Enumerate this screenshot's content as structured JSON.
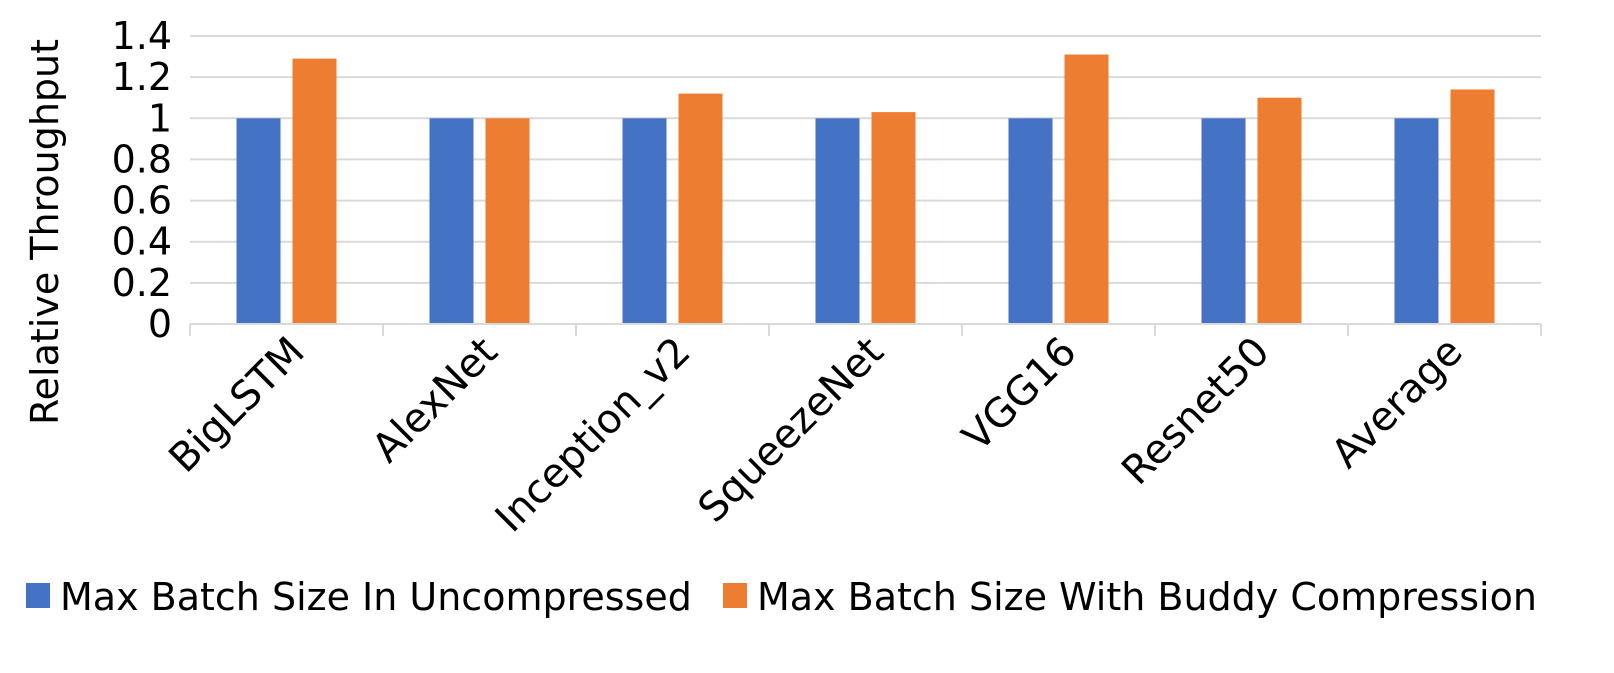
{
  "chart_data": {
    "type": "bar",
    "title": "",
    "xlabel": "",
    "ylabel": "Relative Throughput",
    "ylim": [
      0,
      1.4
    ],
    "yticks": [
      "0",
      "0.2",
      "0.4",
      "0.6",
      "0.8",
      "1",
      "1.2",
      "1.4"
    ],
    "ytick_values": [
      0,
      0.2,
      0.4,
      0.6,
      0.8,
      1,
      1.2,
      1.4
    ],
    "grid": true,
    "legend_position": "bottom",
    "categories": [
      "BigLSTM",
      "AlexNet",
      "Inception_v2",
      "SqueezeNet",
      "VGG16",
      "Resnet50",
      "Average"
    ],
    "series": [
      {
        "name": "Max Batch Size In Uncompressed",
        "color": "#4472C4",
        "values": [
          1,
          1,
          1,
          1,
          1,
          1,
          1
        ]
      },
      {
        "name": "Max Batch Size With Buddy Compression",
        "color": "#ED7D31",
        "values": [
          1.29,
          1.0,
          1.12,
          1.03,
          1.31,
          1.1,
          1.14
        ]
      }
    ]
  }
}
